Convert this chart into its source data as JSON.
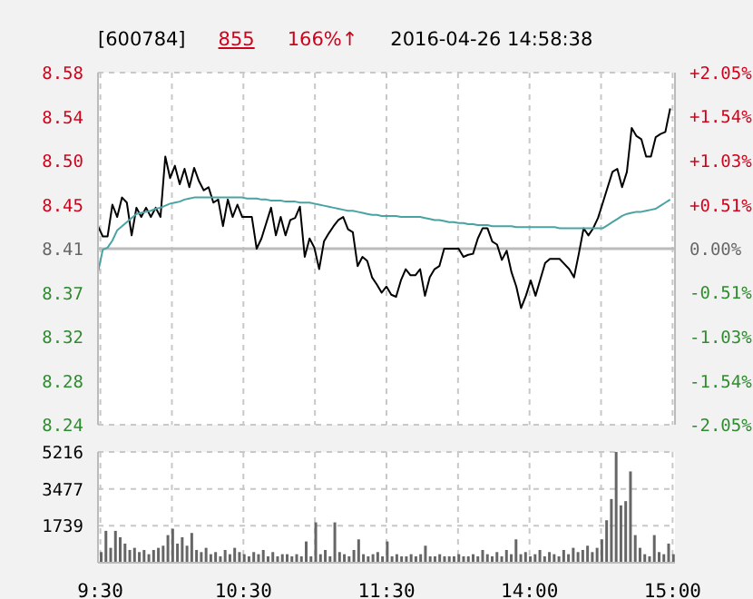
{
  "chart_data": [
    {
      "type": "line",
      "title": "[600784]",
      "annotations": [
        "855",
        "166%↑",
        "2016-04-26 14:58:38"
      ],
      "categories": [
        null,
        null,
        null,
        null,
        null,
        null,
        null,
        null,
        null,
        null,
        null,
        null,
        null,
        null,
        null,
        null,
        null,
        null,
        null,
        null,
        null,
        null,
        null,
        null,
        null,
        null,
        null,
        null,
        null,
        null,
        null,
        null,
        null,
        null,
        null,
        null,
        null,
        null,
        null,
        null,
        null,
        null,
        null,
        null,
        null,
        null,
        null,
        null,
        null,
        null,
        null,
        null,
        null,
        null,
        null,
        null,
        null,
        null,
        null,
        null,
        null,
        null,
        null,
        null,
        null,
        null,
        null,
        null,
        null,
        null,
        null,
        null,
        null,
        null,
        null,
        null,
        null,
        null,
        null,
        null,
        null,
        null,
        null,
        null,
        null,
        null,
        null,
        null,
        null,
        null,
        null,
        null,
        null,
        null,
        null,
        null,
        null,
        null,
        null,
        null,
        null,
        null,
        null,
        null,
        null,
        null,
        null,
        null,
        null,
        null,
        null,
        null,
        null,
        null,
        null,
        null,
        null,
        null,
        null,
        null,
        null
      ],
      "ylim": [
        8.238,
        8.582
      ],
      "yticks": [
        {
          "value": 8.582,
          "label": "8.58"
        },
        {
          "value": 8.539,
          "label": "8.54"
        },
        {
          "value": 8.496,
          "label": "8.50"
        },
        {
          "value": 8.453,
          "label": "8.45"
        },
        {
          "value": 8.41,
          "label": "8.41"
        },
        {
          "value": 8.367,
          "label": "8.37"
        },
        {
          "value": 8.324,
          "label": "8.32"
        },
        {
          "value": 8.281,
          "label": "8.28"
        },
        {
          "value": 8.238,
          "label": "8.24"
        }
      ],
      "y2lim": [
        -2.05,
        2.05
      ],
      "y2ticks": [
        {
          "value": 2.05,
          "label": "+2.05%"
        },
        {
          "value": 1.54,
          "label": "+1.54%"
        },
        {
          "value": 1.03,
          "label": "+1.03%"
        },
        {
          "value": 0.51,
          "label": "+0.51%"
        },
        {
          "value": 0,
          "label": "0.00%"
        },
        {
          "value": -0.51,
          "label": "-0.51%"
        },
        {
          "value": -1.03,
          "label": "-1.03%"
        },
        {
          "value": -1.54,
          "label": "-1.54%"
        },
        {
          "value": -2.05,
          "label": "-2.05%"
        }
      ],
      "grid": true,
      "ref_lines": [
        {
          "axis": "y2",
          "value": 0,
          "color": "#bbbbbb"
        }
      ],
      "series": [
        {
          "color": "#000000",
          "values": [
            8.432,
            8.422,
            8.422,
            8.453,
            8.441,
            8.46,
            8.455,
            8.423,
            8.45,
            8.441,
            8.45,
            8.441,
            8.45,
            8.441,
            8.5,
            8.479,
            8.491,
            8.473,
            8.488,
            8.47,
            8.489,
            8.476,
            8.467,
            8.47,
            8.455,
            8.458,
            8.432,
            8.458,
            8.441,
            8.453,
            8.441,
            8.441,
            8.441,
            8.41,
            8.42,
            8.435,
            8.45,
            8.423,
            8.441,
            8.423,
            8.438,
            8.44,
            8.451,
            8.402,
            8.42,
            8.411,
            8.39,
            8.417,
            8.425,
            8.432,
            8.438,
            8.441,
            8.429,
            8.426,
            8.393,
            8.402,
            8.398,
            8.382,
            8.375,
            8.367,
            8.373,
            8.365,
            8.363,
            8.379,
            8.39,
            8.384,
            8.384,
            8.39,
            8.364,
            8.382,
            8.39,
            8.393,
            8.41,
            8.41,
            8.41,
            8.41,
            8.402,
            8.404,
            8.405,
            8.42,
            8.43,
            8.43,
            8.417,
            8.414,
            8.399,
            8.408,
            8.387,
            8.373,
            8.352,
            8.364,
            8.379,
            8.364,
            8.38,
            8.396,
            8.4,
            8.4,
            8.4,
            8.395,
            8.39,
            8.382,
            8.405,
            8.43,
            8.423,
            8.43,
            8.44,
            8.455,
            8.47,
            8.485,
            8.488,
            8.47,
            8.485,
            8.528,
            8.52,
            8.517,
            8.5,
            8.5,
            8.519,
            8.522,
            8.524,
            8.547,
            null
          ]
        },
        {
          "color": "#4aa3a3",
          "values": [
            8.387,
            8.409,
            8.411,
            8.418,
            8.428,
            8.432,
            8.436,
            8.44,
            8.444,
            8.445,
            8.446,
            8.447,
            8.449,
            8.45,
            8.452,
            8.454,
            8.455,
            8.456,
            8.458,
            8.459,
            8.46,
            8.46,
            8.46,
            8.46,
            8.46,
            8.46,
            8.46,
            8.46,
            8.46,
            8.46,
            8.46,
            8.459,
            8.459,
            8.459,
            8.458,
            8.458,
            8.457,
            8.457,
            8.457,
            8.456,
            8.456,
            8.456,
            8.455,
            8.455,
            8.455,
            8.454,
            8.453,
            8.452,
            8.451,
            8.45,
            8.449,
            8.448,
            8.447,
            8.447,
            8.446,
            8.445,
            8.444,
            8.443,
            8.443,
            8.442,
            8.442,
            8.442,
            8.442,
            8.441,
            8.441,
            8.441,
            8.441,
            8.441,
            8.44,
            8.439,
            8.438,
            8.438,
            8.437,
            8.436,
            8.436,
            8.435,
            8.435,
            8.434,
            8.434,
            8.433,
            8.433,
            8.433,
            8.432,
            8.432,
            8.432,
            8.432,
            8.432,
            8.431,
            8.431,
            8.431,
            8.431,
            8.431,
            8.431,
            8.431,
            8.431,
            8.431,
            8.43,
            8.43,
            8.43,
            8.43,
            8.43,
            8.43,
            8.43,
            8.43,
            8.43,
            8.43,
            8.433,
            8.436,
            8.439,
            8.442,
            8.444,
            8.445,
            8.446,
            8.446,
            8.447,
            8.448,
            8.449,
            8.452,
            8.455,
            8.458,
            null
          ]
        }
      ]
    },
    {
      "type": "bar",
      "categories": [
        "9:30",
        null,
        null,
        null,
        null,
        null,
        null,
        null,
        null,
        null,
        null,
        null,
        null,
        null,
        null,
        null,
        null,
        null,
        null,
        null,
        null,
        null,
        null,
        null,
        null,
        null,
        null,
        null,
        null,
        null,
        "10:30",
        null,
        null,
        null,
        null,
        null,
        null,
        null,
        null,
        null,
        null,
        null,
        null,
        null,
        null,
        null,
        null,
        null,
        null,
        null,
        null,
        null,
        null,
        null,
        null,
        null,
        null,
        null,
        null,
        null,
        "11:30",
        null,
        null,
        null,
        null,
        null,
        null,
        null,
        null,
        null,
        null,
        null,
        null,
        null,
        null,
        null,
        null,
        null,
        null,
        null,
        null,
        null,
        null,
        null,
        null,
        null,
        null,
        null,
        null,
        null,
        "14:00",
        null,
        null,
        null,
        null,
        null,
        null,
        null,
        null,
        null,
        null,
        null,
        null,
        null,
        null,
        null,
        null,
        null,
        null,
        null,
        null,
        null,
        null,
        null,
        null,
        null,
        null,
        null,
        null,
        null,
        "15:00"
      ],
      "ylim": [
        0,
        5216
      ],
      "yticks": [
        1739,
        3477,
        5216
      ],
      "grid": true,
      "series": [
        {
          "color": "#666666",
          "values": [
            500,
            1500,
            700,
            1500,
            1200,
            900,
            600,
            700,
            500,
            600,
            400,
            600,
            700,
            800,
            1300,
            1600,
            900,
            1200,
            800,
            1400,
            600,
            500,
            700,
            400,
            500,
            300,
            600,
            400,
            700,
            500,
            400,
            300,
            500,
            400,
            600,
            300,
            500,
            300,
            400,
            400,
            300,
            400,
            300,
            1000,
            300,
            1900,
            400,
            600,
            300,
            1900,
            500,
            400,
            300,
            600,
            1100,
            400,
            300,
            400,
            500,
            300,
            1000,
            300,
            400,
            300,
            300,
            400,
            300,
            400,
            800,
            300,
            300,
            400,
            300,
            300,
            300,
            400,
            300,
            300,
            400,
            300,
            600,
            400,
            300,
            500,
            300,
            600,
            400,
            1100,
            400,
            500,
            300,
            400,
            600,
            300,
            500,
            400,
            300,
            600,
            400,
            700,
            500,
            600,
            800,
            500,
            700,
            1100,
            2000,
            3000,
            5216,
            2700,
            2900,
            4300,
            1300,
            700,
            400,
            300,
            1300,
            500,
            400,
            900,
            400
          ]
        }
      ]
    }
  ]
}
